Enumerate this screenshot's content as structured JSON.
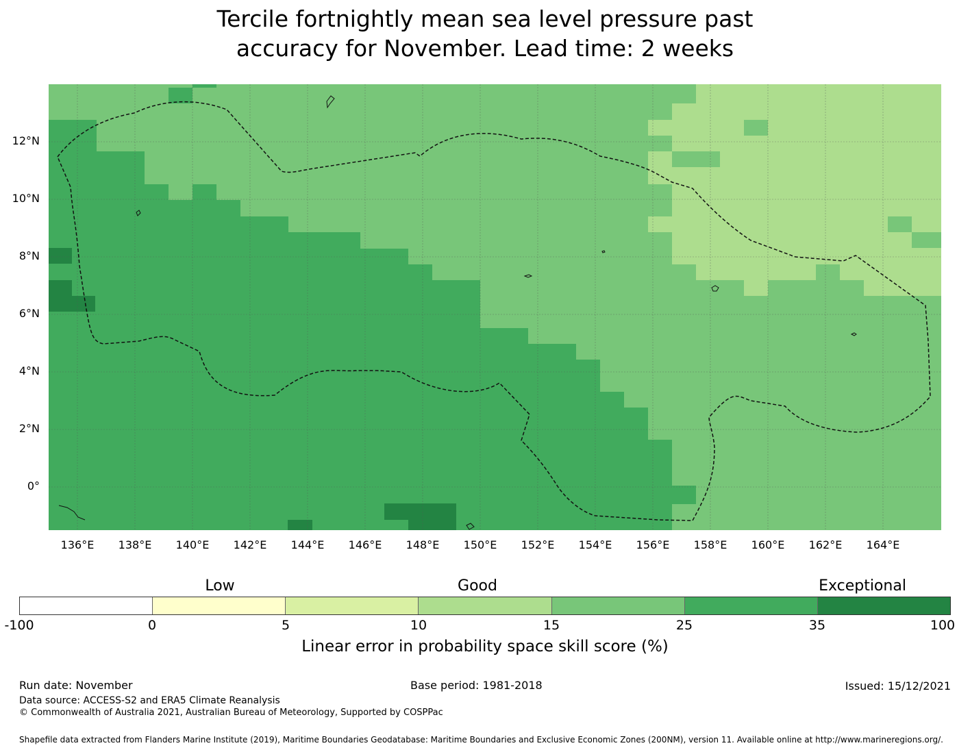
{
  "title": {
    "line1": "Tercile fortnightly mean sea level pressure past",
    "line2": "accuracy for November. Lead time: 2 weeks"
  },
  "map": {
    "lat_labels": [
      "12°N",
      "10°N",
      "8°N",
      "6°N",
      "4°N",
      "2°N",
      "0°"
    ],
    "lon_labels": [
      "136°E",
      "138°E",
      "140°E",
      "142°E",
      "144°E",
      "146°E",
      "148°E",
      "150°E",
      "152°E",
      "154°E",
      "156°E",
      "158°E",
      "160°E",
      "162°E",
      "164°E"
    ],
    "colors": {
      "c10_15": "#addd8e",
      "c15_25": "#78c679",
      "c25_35": "#41ab5d",
      "c35_100": "#238443",
      "eez": "#111111",
      "grid": "#555555"
    }
  },
  "colorbar": {
    "categories": [
      "Low",
      "Good",
      "Exceptional"
    ],
    "ticks": [
      "-100",
      "0",
      "5",
      "10",
      "15",
      "25",
      "35",
      "100"
    ],
    "segment_colors": [
      "#ffffff",
      "#ffffcc",
      "#d9f0a3",
      "#addd8e",
      "#78c679",
      "#41ab5d",
      "#238443"
    ],
    "label": "Linear error in probability space skill score (%)"
  },
  "footer": {
    "run_date": "Run date: November",
    "base_period": "Base period: 1981-2018",
    "issued": "Issued: 15/12/2021",
    "data_source": "Data source: ACCESS-S2 and ERA5 Climate Reanalysis",
    "copyright": "© Commonwealth of Australia 2021, Australian Bureau of Meteorology, Supported by COSPPac",
    "shapefile": "Shapefile data extracted from Flanders Marine Institute (2019), Maritime Boundaries Geodatabase: Maritime Boundaries and Exclusive Economic Zones (200NM), version 11. Available online at http://www.marineregions.org/."
  }
}
